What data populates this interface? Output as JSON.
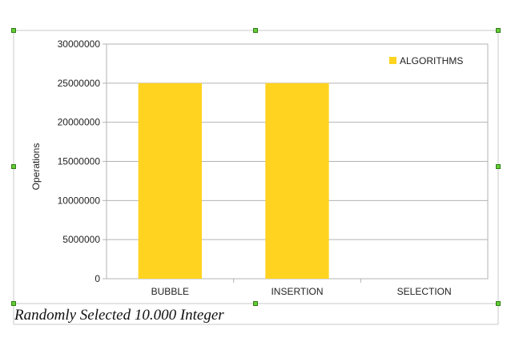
{
  "caption": "Randomly Selected 10.000 Integer",
  "colors": {
    "bar": "#FFD320",
    "grid": "#b3b3b3",
    "frame": "#b3b3b3",
    "selection": "#c8c8c8",
    "handle": "#66cc33"
  },
  "chart_data": {
    "type": "bar",
    "categories": [
      "BUBBLE",
      "INSERTION",
      "SELECTION"
    ],
    "series": [
      {
        "name": "ALGORITHMS",
        "values": [
          25000000,
          25000000,
          0
        ]
      }
    ],
    "xlabel": "",
    "ylabel": "Operations",
    "ylim": [
      0,
      30000000
    ],
    "yticks": [
      0,
      5000000,
      10000000,
      15000000,
      20000000,
      25000000,
      30000000
    ],
    "ytick_labels": [
      "0",
      "5000000",
      "10000000",
      "15000000",
      "20000000",
      "25000000",
      "30000000"
    ],
    "grid": true,
    "legend_position": "top-right"
  }
}
